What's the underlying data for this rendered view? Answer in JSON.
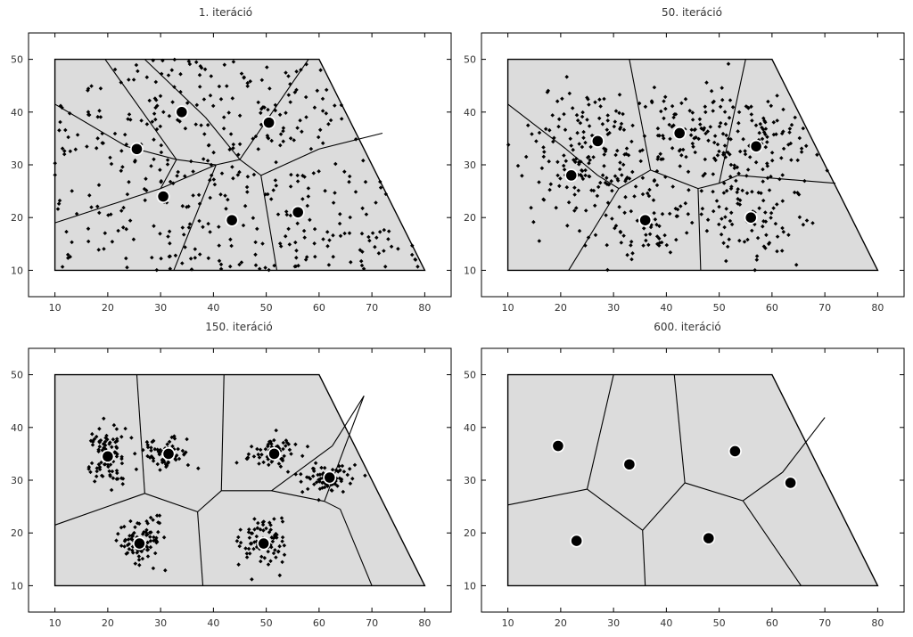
{
  "chart_data": [
    {
      "type": "scatter",
      "title": "1. iteráció",
      "xlim": [
        5,
        85
      ],
      "ylim": [
        5,
        55
      ],
      "xticks": [
        10,
        20,
        30,
        40,
        50,
        60,
        70,
        80
      ],
      "yticks": [
        10,
        20,
        30,
        40,
        50
      ],
      "region": [
        [
          10,
          10
        ],
        [
          80,
          10
        ],
        [
          60,
          50
        ],
        [
          10,
          50
        ]
      ],
      "edges": [
        [
          [
            10,
            19
          ],
          [
            30,
            25.5
          ]
        ],
        [
          [
            30,
            25.5
          ],
          [
            40.5,
            30
          ]
        ],
        [
          [
            30,
            25.5
          ],
          [
            33,
            31
          ]
        ],
        [
          [
            33,
            31
          ],
          [
            40.5,
            30
          ]
        ],
        [
          [
            33,
            31
          ],
          [
            19.5,
            50
          ]
        ],
        [
          [
            10,
            41.5
          ],
          [
            23.5,
            33.5
          ]
        ],
        [
          [
            23.5,
            33.5
          ],
          [
            33,
            31
          ]
        ],
        [
          [
            40.5,
            30
          ],
          [
            45,
            31
          ]
        ],
        [
          [
            45,
            31
          ],
          [
            58,
            50
          ]
        ],
        [
          [
            45,
            31
          ],
          [
            38.5,
            39
          ]
        ],
        [
          [
            38.5,
            39
          ],
          [
            27,
            50
          ]
        ],
        [
          [
            40.5,
            30
          ],
          [
            32.5,
            10
          ]
        ],
        [
          [
            45,
            31
          ],
          [
            49,
            28
          ]
        ],
        [
          [
            49,
            28
          ],
          [
            52,
            10
          ]
        ],
        [
          [
            49,
            28
          ],
          [
            60,
            33
          ]
        ],
        [
          [
            60,
            33
          ],
          [
            72,
            36
          ]
        ]
      ],
      "centroids": [
        [
          34,
          40
        ],
        [
          25.5,
          33
        ],
        [
          50.5,
          38
        ],
        [
          30.5,
          24
        ],
        [
          43.5,
          19.5
        ],
        [
          56,
          21
        ]
      ],
      "point_clusters": [
        {
          "center": [
            40,
            30
          ],
          "spread": [
            18,
            12
          ],
          "n": 420,
          "shape": "uniform"
        }
      ]
    },
    {
      "type": "scatter",
      "title": "50. iteráció",
      "xlim": [
        5,
        85
      ],
      "ylim": [
        5,
        55
      ],
      "xticks": [
        10,
        20,
        30,
        40,
        50,
        60,
        70,
        80
      ],
      "yticks": [
        10,
        20,
        30,
        40,
        50
      ],
      "region": [
        [
          10,
          10
        ],
        [
          80,
          10
        ],
        [
          60,
          50
        ],
        [
          10,
          50
        ]
      ],
      "edges": [
        [
          [
            10,
            41.5
          ],
          [
            21,
            33
          ]
        ],
        [
          [
            21,
            33
          ],
          [
            27,
            28
          ]
        ],
        [
          [
            27,
            28
          ],
          [
            31,
            25.5
          ]
        ],
        [
          [
            31,
            25.5
          ],
          [
            37,
            29
          ]
        ],
        [
          [
            37,
            29
          ],
          [
            33,
            50
          ]
        ],
        [
          [
            37,
            29
          ],
          [
            46,
            25.5
          ]
        ],
        [
          [
            46,
            25.5
          ],
          [
            50,
            26.5
          ]
        ],
        [
          [
            50,
            26.5
          ],
          [
            55,
            50
          ]
        ],
        [
          [
            50,
            26.5
          ],
          [
            53.5,
            28
          ]
        ],
        [
          [
            53.5,
            28
          ],
          [
            72,
            26.5
          ]
        ],
        [
          [
            31,
            25.5
          ],
          [
            21.5,
            10
          ]
        ],
        [
          [
            46,
            25.5
          ],
          [
            46.5,
            10
          ]
        ]
      ],
      "centroids": [
        [
          27,
          34.5
        ],
        [
          42.5,
          36
        ],
        [
          57,
          33.5
        ],
        [
          22,
          28
        ],
        [
          36,
          19.5
        ],
        [
          56,
          20
        ]
      ],
      "point_clusters": [
        {
          "center": [
            27,
            34.5
          ],
          "spread": [
            7,
            6
          ],
          "n": 110,
          "shape": "gauss"
        },
        {
          "center": [
            42.5,
            36
          ],
          "spread": [
            6,
            4
          ],
          "n": 70,
          "shape": "gauss"
        },
        {
          "center": [
            57,
            33.5
          ],
          "spread": [
            7,
            5
          ],
          "n": 110,
          "shape": "gauss"
        },
        {
          "center": [
            22,
            28
          ],
          "spread": [
            6,
            6
          ],
          "n": 70,
          "shape": "gauss"
        },
        {
          "center": [
            36,
            19.5
          ],
          "spread": [
            6,
            4
          ],
          "n": 65,
          "shape": "gauss"
        },
        {
          "center": [
            56,
            20
          ],
          "spread": [
            7,
            5
          ],
          "n": 80,
          "shape": "gauss"
        }
      ]
    },
    {
      "type": "scatter",
      "title": "150. iteráció",
      "xlim": [
        5,
        85
      ],
      "ylim": [
        5,
        55
      ],
      "xticks": [
        10,
        20,
        30,
        40,
        50,
        60,
        70,
        80
      ],
      "yticks": [
        10,
        20,
        30,
        40,
        50
      ],
      "region": [
        [
          10,
          10
        ],
        [
          80,
          10
        ],
        [
          60,
          50
        ],
        [
          10,
          50
        ]
      ],
      "edges": [
        [
          [
            10,
            21.5
          ],
          [
            27,
            27.5
          ]
        ],
        [
          [
            27,
            27.5
          ],
          [
            25.5,
            50
          ]
        ],
        [
          [
            27,
            27.5
          ],
          [
            37,
            24
          ]
        ],
        [
          [
            37,
            24
          ],
          [
            38,
            10
          ]
        ],
        [
          [
            37,
            24
          ],
          [
            41.5,
            28
          ]
        ],
        [
          [
            41.5,
            28
          ],
          [
            51,
            28
          ]
        ],
        [
          [
            51,
            28
          ],
          [
            62.5,
            36.5
          ]
        ],
        [
          [
            62.5,
            36.5
          ],
          [
            68.5,
            46
          ]
        ],
        [
          [
            41.5,
            28
          ],
          [
            42,
            50
          ]
        ],
        [
          [
            51,
            28
          ],
          [
            61,
            26
          ]
        ],
        [
          [
            61,
            26
          ],
          [
            68.5,
            46
          ]
        ],
        [
          [
            61,
            26
          ],
          [
            64,
            24.5
          ]
        ],
        [
          [
            64,
            24.5
          ],
          [
            70,
            10
          ]
        ]
      ],
      "centroids": [
        [
          20,
          34.5
        ],
        [
          31.5,
          35
        ],
        [
          51.5,
          35
        ],
        [
          62,
          30.5
        ],
        [
          26,
          18
        ],
        [
          49.5,
          18
        ]
      ],
      "point_clusters": [
        {
          "center": [
            20,
            34.5
          ],
          "spread": [
            1.8,
            2.8
          ],
          "n": 90,
          "shape": "gauss"
        },
        {
          "center": [
            31.5,
            35
          ],
          "spread": [
            2.2,
            1.6
          ],
          "n": 70,
          "shape": "gauss"
        },
        {
          "center": [
            51.5,
            35
          ],
          "spread": [
            2.4,
            1.5
          ],
          "n": 70,
          "shape": "gauss"
        },
        {
          "center": [
            62,
            30.5
          ],
          "spread": [
            2.4,
            1.4
          ],
          "n": 70,
          "shape": "gauss"
        },
        {
          "center": [
            26,
            18
          ],
          "spread": [
            2.0,
            2.5
          ],
          "n": 90,
          "shape": "gauss"
        },
        {
          "center": [
            49.5,
            18
          ],
          "spread": [
            2.2,
            2.6
          ],
          "n": 80,
          "shape": "gauss"
        }
      ]
    },
    {
      "type": "scatter",
      "title": "600. iteráció",
      "xlim": [
        5,
        85
      ],
      "ylim": [
        5,
        55
      ],
      "xticks": [
        10,
        20,
        30,
        40,
        50,
        60,
        70,
        80
      ],
      "yticks": [
        10,
        20,
        30,
        40,
        50
      ],
      "region": [
        [
          10,
          10
        ],
        [
          80,
          10
        ],
        [
          60,
          50
        ],
        [
          10,
          50
        ]
      ],
      "edges": [
        [
          [
            10,
            25.3
          ],
          [
            25,
            28.3
          ]
        ],
        [
          [
            25,
            28.3
          ],
          [
            30,
            50
          ]
        ],
        [
          [
            25,
            28.3
          ],
          [
            35.5,
            20.5
          ]
        ],
        [
          [
            35.5,
            20.5
          ],
          [
            36,
            10
          ]
        ],
        [
          [
            35.5,
            20.5
          ],
          [
            43.5,
            29.5
          ]
        ],
        [
          [
            43.5,
            29.5
          ],
          [
            41.5,
            50
          ]
        ],
        [
          [
            43.5,
            29.5
          ],
          [
            54.5,
            26.1
          ]
        ],
        [
          [
            54.5,
            26.1
          ],
          [
            62,
            31.5
          ]
        ],
        [
          [
            62,
            31.5
          ],
          [
            70,
            41.9
          ]
        ],
        [
          [
            54.5,
            26.1
          ],
          [
            65.5,
            10
          ]
        ]
      ],
      "centroids": [
        [
          19.5,
          36.5
        ],
        [
          33,
          33
        ],
        [
          53,
          35.5
        ],
        [
          63.5,
          29.5
        ],
        [
          23,
          18.5
        ],
        [
          48,
          19
        ]
      ],
      "point_clusters": []
    }
  ]
}
